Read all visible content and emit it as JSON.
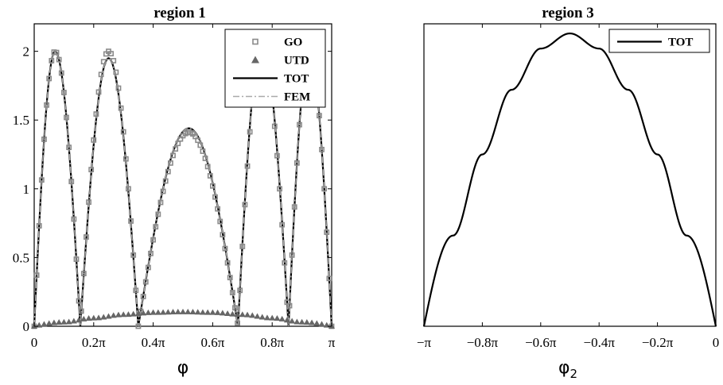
{
  "chart_data": [
    {
      "type": "line",
      "title": "region 1",
      "xlabel": "φ",
      "ylabel": "",
      "xlim": [
        0,
        1
      ],
      "ylim": [
        0,
        2.2
      ],
      "x_unit": "π",
      "xtick_values": [
        0,
        0.2,
        0.4,
        0.6,
        0.8,
        1.0
      ],
      "xtick_labels": [
        "0",
        "0.2π",
        "0.4π",
        "0.6π",
        "0.8π",
        "π"
      ],
      "ytick_values": [
        0,
        0.5,
        1,
        1.5,
        2
      ],
      "ytick_labels": [
        "0",
        "0.5",
        "1",
        "1.5",
        "2"
      ],
      "legend_position": "top-right",
      "legend": [
        "GO",
        "UTD",
        "TOT",
        "FEM"
      ],
      "series": [
        {
          "name": "TOT",
          "style": "solid",
          "color": "#000000",
          "x": [
            0,
            0.07,
            0.155,
            0.25,
            0.35,
            0.52,
            0.685,
            0.765,
            0.855,
            0.925,
            1.0
          ],
          "y": [
            0,
            2.0,
            0,
            1.95,
            0,
            1.44,
            0,
            2.06,
            0,
            2.0,
            0
          ]
        },
        {
          "name": "FEM",
          "style": "dash-dot",
          "color": "#aaaaaa",
          "x": [
            0,
            0.07,
            0.155,
            0.25,
            0.35,
            0.52,
            0.685,
            0.765,
            0.855,
            0.925,
            1.0
          ],
          "y": [
            0,
            2.0,
            0,
            1.95,
            0,
            1.44,
            0,
            2.06,
            0,
            2.0,
            0
          ]
        },
        {
          "name": "GO",
          "style": "square-markers",
          "color": "#8a8a8a",
          "x": [
            0,
            0.07,
            0.155,
            0.25,
            0.35,
            0.52,
            0.685,
            0.765,
            0.855,
            0.925,
            1.0
          ],
          "y": [
            0,
            2.0,
            0,
            2.0,
            0,
            1.41,
            0,
            2.0,
            0,
            2.0,
            0
          ]
        },
        {
          "name": "UTD",
          "style": "triangle-markers",
          "color": "#666666",
          "x": [
            0,
            0.1,
            0.2,
            0.3,
            0.4,
            0.5,
            0.6,
            0.7,
            0.8,
            0.9,
            1.0
          ],
          "y": [
            0,
            0.03,
            0.06,
            0.085,
            0.1,
            0.105,
            0.1,
            0.085,
            0.06,
            0.03,
            0
          ]
        }
      ]
    },
    {
      "type": "line",
      "title": "region 3",
      "xlabel": "φ2",
      "ylabel": "",
      "xlim": [
        -1,
        0
      ],
      "ylim": [
        0,
        2.2
      ],
      "x_unit": "π",
      "xtick_values": [
        -1,
        -0.8,
        -0.6,
        -0.4,
        -0.2,
        0
      ],
      "xtick_labels": [
        "−π",
        "−0.8π",
        "−0.6π",
        "−0.4π",
        "−0.2π",
        "0"
      ],
      "ytick_values": [],
      "ytick_labels": [],
      "legend_position": "top-right",
      "legend": [
        "TOT"
      ],
      "series": [
        {
          "name": "TOT",
          "style": "solid",
          "color": "#000000",
          "x": [
            -1,
            -0.9,
            -0.8,
            -0.7,
            -0.6,
            -0.5,
            -0.4,
            -0.3,
            -0.2,
            -0.1,
            0
          ],
          "y": [
            0,
            0.66,
            1.25,
            1.72,
            2.02,
            2.13,
            2.02,
            1.72,
            1.25,
            0.66,
            0
          ]
        }
      ]
    }
  ]
}
